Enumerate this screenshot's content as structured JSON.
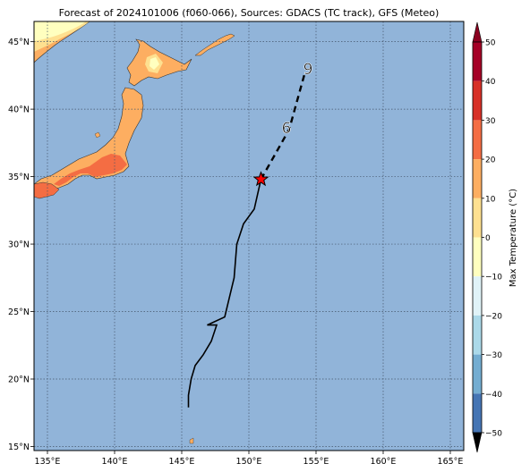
{
  "title": "Forecast of 2024101006 (f060-066), Sources: GDACS (TC track), GFS (Meteo)",
  "map": {
    "lon_ticks": [
      {
        "value": 135,
        "label": "135°E"
      },
      {
        "value": 140,
        "label": "140°E"
      },
      {
        "value": 145,
        "label": "145°E"
      },
      {
        "value": 150,
        "label": "150°E"
      },
      {
        "value": 155,
        "label": "155°E"
      },
      {
        "value": 160,
        "label": "160°E"
      },
      {
        "value": 165,
        "label": "165°E"
      }
    ],
    "lat_ticks": [
      {
        "value": 15,
        "label": "15°N"
      },
      {
        "value": 20,
        "label": "20°N"
      },
      {
        "value": 25,
        "label": "25°N"
      },
      {
        "value": 30,
        "label": "30°N"
      },
      {
        "value": 35,
        "label": "35°N"
      },
      {
        "value": 40,
        "label": "40°N"
      },
      {
        "value": 45,
        "label": "45°N"
      }
    ],
    "lon_range": [
      134,
      166
    ],
    "lat_range": [
      14.7,
      46.5
    ],
    "ocean_color": "#91b4d9",
    "grid": "dotted",
    "track_observed": [
      [
        145.5,
        17.9
      ],
      [
        145.5,
        18.8
      ],
      [
        145.7,
        20.0
      ],
      [
        146.0,
        21.0
      ],
      [
        146.6,
        21.8
      ],
      [
        147.2,
        22.8
      ],
      [
        147.6,
        24.0
      ],
      [
        146.9,
        24.0
      ],
      [
        148.2,
        24.6
      ],
      [
        148.9,
        27.5
      ],
      [
        149.1,
        30.0
      ],
      [
        149.6,
        31.5
      ],
      [
        150.4,
        32.6
      ],
      [
        150.9,
        34.8
      ]
    ],
    "track_forecast": [
      [
        150.9,
        34.8
      ],
      [
        153.0,
        38.5
      ],
      [
        154.2,
        42.8
      ]
    ],
    "storm_markers": [
      {
        "symbol": "6",
        "lon": 152.8,
        "lat": 38.6
      },
      {
        "symbol": "9",
        "lon": 154.4,
        "lat": 43.0
      }
    ],
    "current_position": {
      "lon": 150.9,
      "lat": 34.8,
      "color": "#ff0000"
    }
  },
  "colorbar": {
    "label": "Max Temperature (°C)",
    "ticks": [
      "50",
      "40",
      "30",
      "20",
      "10",
      "0",
      "−10",
      "−20",
      "−30",
      "−40",
      "−50"
    ],
    "colors": [
      "#a50026",
      "#d73027",
      "#f46d43",
      "#fdae61",
      "#fee090",
      "#ffffbf",
      "#e0f3f8",
      "#abd9e9",
      "#74add1",
      "#4575b4",
      "#313695"
    ],
    "top_extend_color": "#8b0020",
    "bottom_extend_color": "#000000"
  }
}
